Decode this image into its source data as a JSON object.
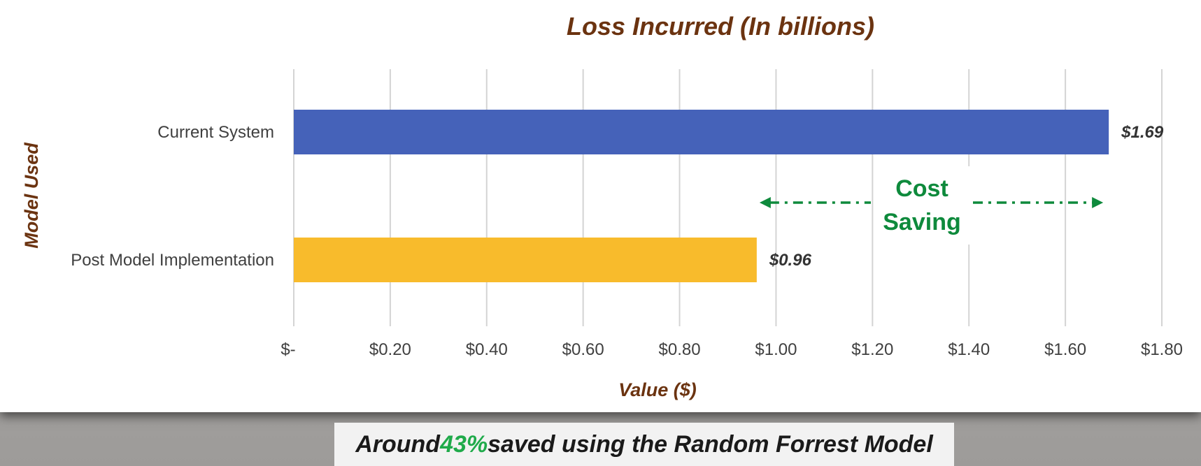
{
  "chart_data": {
    "type": "bar",
    "orientation": "horizontal",
    "title": "Loss Incurred (In billions)",
    "xlabel": "Value ($)",
    "ylabel": "Model Used",
    "categories": [
      "Current System",
      "Post Model Implementation"
    ],
    "values": [
      1.69,
      0.96
    ],
    "value_labels": [
      "$1.69",
      "$0.96"
    ],
    "bar_colors": [
      "#4562b9",
      "#f8bb2c"
    ],
    "xlim": [
      0,
      1.8
    ],
    "x_ticks": [
      0,
      0.2,
      0.4,
      0.6,
      0.8,
      1.0,
      1.2,
      1.4,
      1.6,
      1.8
    ],
    "x_tick_labels": [
      "$-",
      "$0.20",
      "$0.40",
      "$0.60",
      "$0.80",
      "$1.00",
      "$1.20",
      "$1.40",
      "$1.60",
      "$1.80"
    ],
    "grid": true,
    "annotation": {
      "text_lines": [
        "Cost",
        "Saving"
      ],
      "from_value": 0.96,
      "to_value": 1.69,
      "color": "#0e8a3c"
    }
  },
  "caption": {
    "prefix": "Around ",
    "highlight": "43%",
    "suffix": " saved using the Random Forrest Model",
    "highlight_color": "#1faa4a"
  },
  "colors": {
    "title": "#6b3310",
    "axis_label": "#6b3310",
    "grid": "#d4d4d4",
    "tick_text": "#404040"
  }
}
